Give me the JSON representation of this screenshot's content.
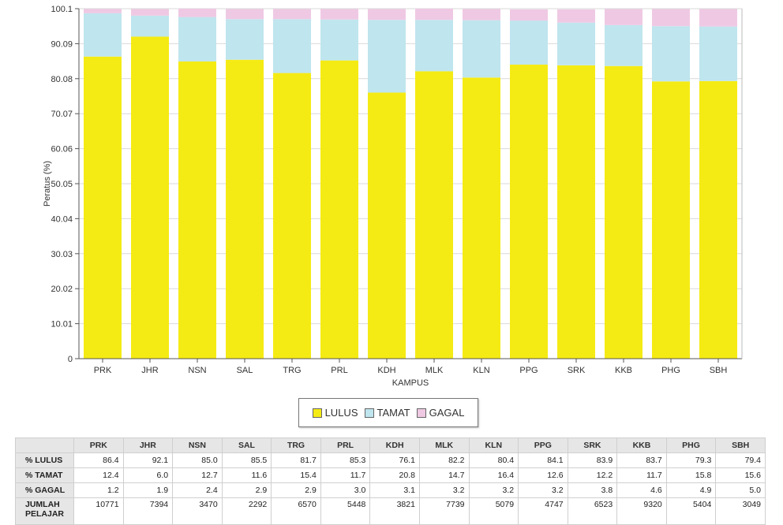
{
  "chart_data": {
    "type": "bar",
    "stacked": true,
    "xlabel": "KAMPUS",
    "ylabel": "Peratus (%)",
    "ylim": [
      0,
      100.1
    ],
    "yticks": [
      "0",
      "10.01",
      "20.02",
      "30.03",
      "40.04",
      "50.05",
      "60.06",
      "70.07",
      "80.08",
      "90.09",
      "100.1"
    ],
    "categories": [
      "PRK",
      "JHR",
      "NSN",
      "SAL",
      "TRG",
      "PRL",
      "KDH",
      "MLK",
      "KLN",
      "PPG",
      "SRK",
      "KKB",
      "PHG",
      "SBH"
    ],
    "series": [
      {
        "name": "LULUS",
        "color": "#f5eb14",
        "values": [
          86.4,
          92.1,
          85.0,
          85.5,
          81.7,
          85.3,
          76.1,
          82.2,
          80.4,
          84.1,
          83.9,
          83.7,
          79.3,
          79.4
        ]
      },
      {
        "name": "TAMAT",
        "color": "#bfe5ee",
        "values": [
          12.4,
          6.0,
          12.7,
          11.6,
          15.4,
          11.7,
          20.8,
          14.7,
          16.4,
          12.6,
          12.2,
          11.7,
          15.8,
          15.6
        ]
      },
      {
        "name": "GAGAL",
        "color": "#efc9e4",
        "values": [
          1.2,
          1.9,
          2.4,
          2.9,
          2.9,
          3.0,
          3.1,
          3.2,
          3.2,
          3.2,
          3.8,
          4.6,
          4.9,
          5.0
        ]
      }
    ],
    "grid": true,
    "legend": "bottom-center"
  },
  "table": {
    "columns": [
      "PRK",
      "JHR",
      "NSN",
      "SAL",
      "TRG",
      "PRL",
      "KDH",
      "MLK",
      "KLN",
      "PPG",
      "SRK",
      "KKB",
      "PHG",
      "SBH"
    ],
    "rows": [
      {
        "label": "% LULUS",
        "values": [
          "86.4",
          "92.1",
          "85.0",
          "85.5",
          "81.7",
          "85.3",
          "76.1",
          "82.2",
          "80.4",
          "84.1",
          "83.9",
          "83.7",
          "79.3",
          "79.4"
        ]
      },
      {
        "label": "% TAMAT",
        "values": [
          "12.4",
          "6.0",
          "12.7",
          "11.6",
          "15.4",
          "11.7",
          "20.8",
          "14.7",
          "16.4",
          "12.6",
          "12.2",
          "11.7",
          "15.8",
          "15.6"
        ]
      },
      {
        "label": "% GAGAL",
        "values": [
          "1.2",
          "1.9",
          "2.4",
          "2.9",
          "2.9",
          "3.0",
          "3.1",
          "3.2",
          "3.2",
          "3.2",
          "3.8",
          "4.6",
          "4.9",
          "5.0"
        ]
      },
      {
        "label": "JUMLAH PELAJAR",
        "values": [
          "10771",
          "7394",
          "3470",
          "2292",
          "6570",
          "5448",
          "3821",
          "7739",
          "5079",
          "4747",
          "6523",
          "9320",
          "5404",
          "3049"
        ]
      }
    ]
  }
}
